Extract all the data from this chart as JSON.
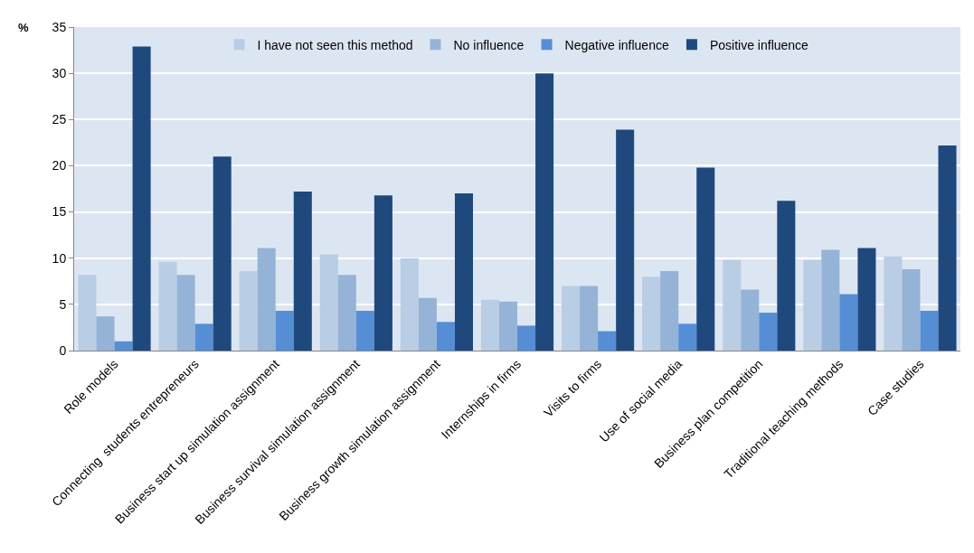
{
  "chart_data": {
    "type": "bar",
    "ylabel": "%",
    "categories": [
      "Role models",
      "Connecting  students entrepreneurs",
      "Business start up simulation assignment",
      "Business survival simulation assignment",
      "Business growth simulation assignment",
      "Internships in firms",
      "Visits to firms",
      "Use of social media",
      "Business plan competition",
      "Traditional teaching methods",
      "Case studies"
    ],
    "series": [
      {
        "name": "I have not seen this method",
        "color": "#b9cde5",
        "values": [
          8.2,
          9.6,
          8.6,
          10.4,
          10.0,
          5.5,
          7.0,
          8.0,
          9.8,
          9.8,
          10.2
        ]
      },
      {
        "name": "No influence",
        "color": "#95b3d7",
        "values": [
          3.7,
          8.2,
          11.1,
          8.2,
          5.7,
          5.3,
          7.0,
          8.6,
          6.6,
          10.9,
          8.8
        ]
      },
      {
        "name": "Negative influence",
        "color": "#558ed5",
        "values": [
          1.0,
          2.9,
          4.3,
          4.3,
          3.1,
          2.7,
          2.1,
          2.9,
          4.1,
          6.1,
          4.3
        ]
      },
      {
        "name": "Positive influence",
        "color": "#1f497d",
        "values": [
          32.9,
          21.0,
          17.2,
          16.8,
          17.0,
          30.0,
          23.9,
          19.8,
          16.2,
          11.1,
          22.2
        ]
      }
    ],
    "ylim": [
      0,
      35
    ],
    "yticks": [
      0,
      5,
      10,
      15,
      20,
      25,
      30,
      35
    ],
    "grid": "y",
    "legend": "top"
  }
}
